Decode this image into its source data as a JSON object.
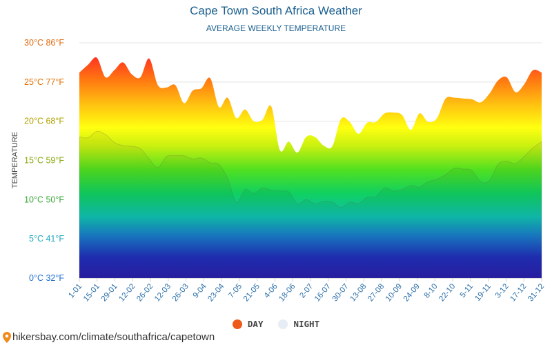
{
  "chart_data": {
    "type": "area",
    "title": "Cape Town South Africa Weather",
    "subtitle": "AVERAGE WEEKLY TEMPERATURE",
    "ylabel": "TEMPERATURE",
    "ylim": [
      0,
      30
    ],
    "grid": true,
    "legend_placement": "bottom-center",
    "y_ticks": [
      {
        "value": 0,
        "label": "0°C 32°F",
        "color": "#1f6fd0"
      },
      {
        "value": 5,
        "label": "5°C 41°F",
        "color": "#20a8c0"
      },
      {
        "value": 10,
        "label": "10°C 50°F",
        "color": "#3aa83a"
      },
      {
        "value": 15,
        "label": "15°C 59°F",
        "color": "#8aaa10"
      },
      {
        "value": 20,
        "label": "20°C 68°F",
        "color": "#b0a000"
      },
      {
        "value": 25,
        "label": "25°C 77°F",
        "color": "#e07000"
      },
      {
        "value": 30,
        "label": "30°C 86°F",
        "color": "#e06a10"
      }
    ],
    "x_tick_labels": [
      "1-01",
      "15-01",
      "29-01",
      "12-02",
      "26-02",
      "12-03",
      "26-03",
      "9-04",
      "23-04",
      "7-05",
      "21-05",
      "4-06",
      "18-06",
      "2-07",
      "16-07",
      "30-07",
      "13-08",
      "27-08",
      "10-09",
      "24-09",
      "8-10",
      "22-10",
      "5-11",
      "19-11",
      "3-12",
      "17-12",
      "31-12"
    ],
    "series": [
      {
        "name": "DAY",
        "color": "#ee5a1a",
        "values": [
          26.2,
          27.2,
          28.1,
          25.6,
          26.5,
          27.5,
          26,
          25.6,
          28,
          24.6,
          24.3,
          24.6,
          22.3,
          23.9,
          24.2,
          25.5,
          21.8,
          23,
          20.4,
          21.5,
          20,
          20.2,
          21.9,
          16.3,
          17.4,
          16,
          18,
          18,
          16.9,
          16.8,
          20.3,
          19.9,
          18.4,
          19.8,
          19.9,
          21,
          21.1,
          20.8,
          18.9,
          21,
          19.9,
          20.4,
          22.9,
          23,
          22.9,
          22.8,
          22.4,
          23.5,
          25.2,
          25.6,
          23.7,
          24.7,
          26.5,
          26.2
        ]
      },
      {
        "name": "NIGHT",
        "color": "#e6edf4",
        "values": [
          18,
          17.9,
          18.7,
          18.3,
          17.3,
          16.9,
          16.8,
          16.5,
          15.2,
          14.1,
          15.5,
          15.6,
          15.6,
          15.2,
          15.3,
          14.7,
          14.5,
          12.7,
          9.7,
          11.3,
          10.8,
          11.5,
          11.2,
          11.1,
          11,
          9.5,
          10,
          9.5,
          9.8,
          9.7,
          9,
          9.7,
          9.5,
          10.3,
          10.4,
          11.5,
          11.1,
          11.3,
          11.8,
          11.6,
          12.3,
          12.6,
          13.2,
          14,
          13.9,
          13.7,
          12.3,
          12.4,
          14.5,
          14.9,
          14.6,
          15.5,
          16.6,
          17.4
        ]
      }
    ]
  },
  "legend": {
    "day_label": "DAY",
    "night_label": "NIGHT"
  },
  "source": {
    "text": "hikersbay.com/climate/southafrica/capetown",
    "icon": "map-pin-icon"
  }
}
